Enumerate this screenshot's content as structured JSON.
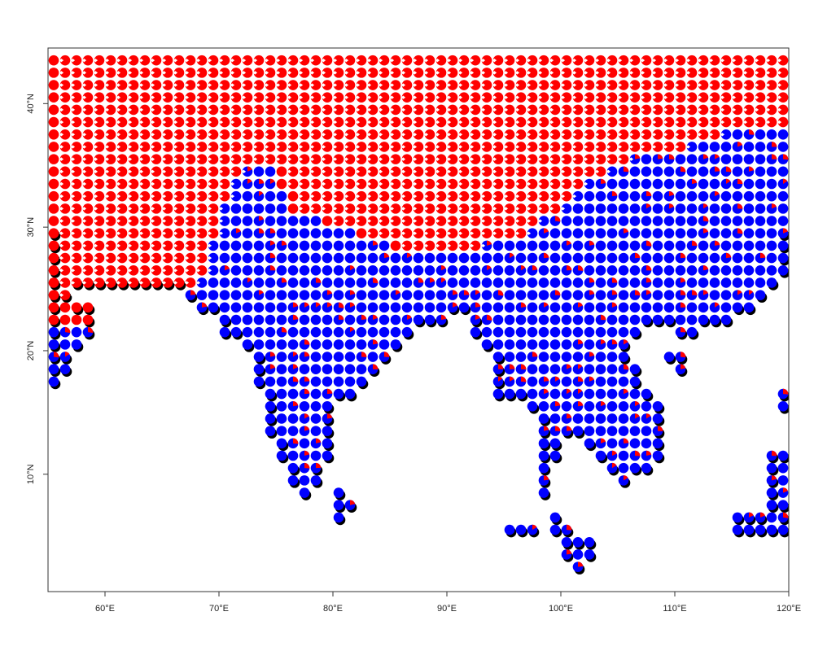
{
  "map": {
    "x_axis": {
      "ticks": [
        {
          "value": 60,
          "label": "60°E"
        },
        {
          "value": 70,
          "label": "70°E"
        },
        {
          "value": 80,
          "label": "80°E"
        },
        {
          "value": 90,
          "label": "90°E"
        },
        {
          "value": 100,
          "label": "100°E"
        },
        {
          "value": 110,
          "label": "110°E"
        },
        {
          "value": 120,
          "label": "120°E"
        }
      ],
      "range": [
        55,
        120
      ]
    },
    "y_axis": {
      "ticks": [
        {
          "value": 10,
          "label": "10°N"
        },
        {
          "value": 20,
          "label": "20°N"
        },
        {
          "value": 30,
          "label": "30°N"
        },
        {
          "value": 40,
          "label": "40°N"
        }
      ],
      "range": [
        0.5,
        44.5
      ]
    },
    "grid_step_degrees": 1,
    "colors": {
      "primary": "#ff0000",
      "secondary": "#0000ff",
      "coastline": "#000000",
      "background": "#ffffff"
    }
  }
}
